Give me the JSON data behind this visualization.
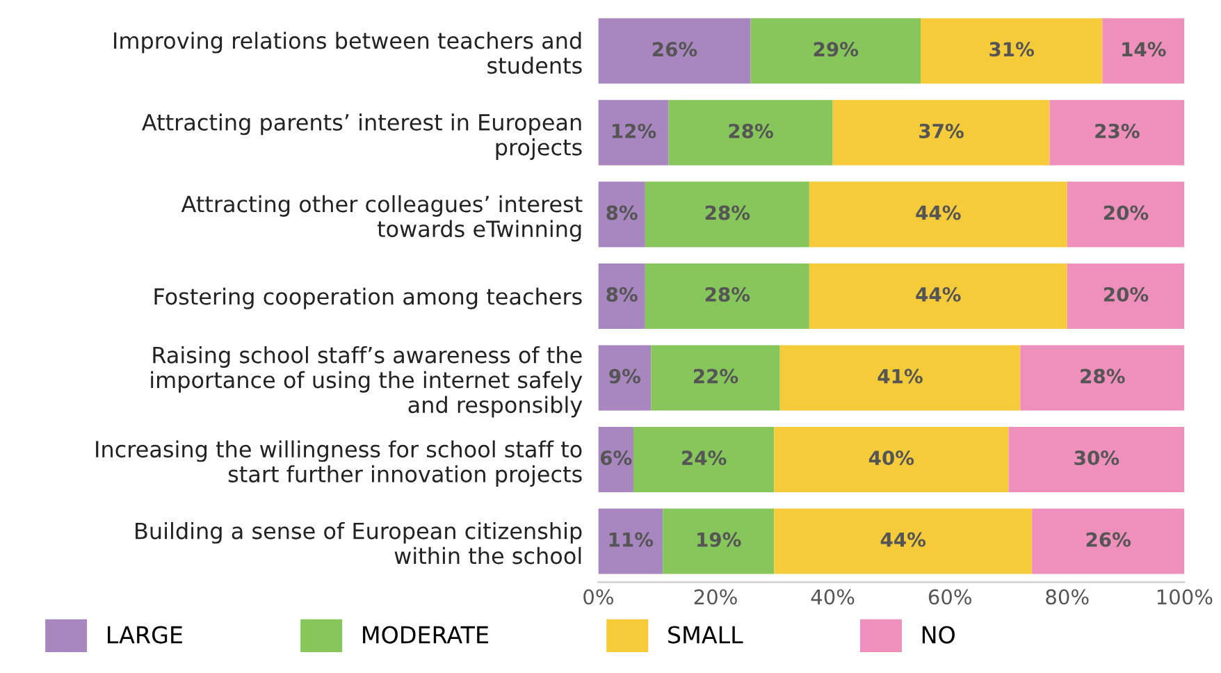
{
  "chart_data": {
    "type": "bar",
    "orientation": "horizontal",
    "stacked": true,
    "categories": [
      "Improving relations between teachers and\nstudents",
      "Attracting parents’ interest in European\nprojects",
      "Attracting other colleagues’ interest\ntowards eTwinning",
      "Fostering cooperation among teachers",
      "Raising school staff’s awareness of the\nimportance of using the internet safely\nand responsibly",
      "Increasing the willingness for school staff to\nstart further innovation projects",
      "Building a sense of European citizenship\nwithin the school"
    ],
    "series": [
      {
        "name": "LARGE",
        "color": "#a886bf",
        "values": [
          26,
          12,
          8,
          8,
          9,
          6,
          11
        ],
        "value_labels": [
          "26%",
          "12%",
          "8%",
          "8%",
          "9%",
          "6%",
          "11%"
        ]
      },
      {
        "name": "MODERATE",
        "color": "#86c65a",
        "values": [
          29,
          28,
          28,
          28,
          22,
          24,
          19
        ],
        "value_labels": [
          "29%",
          "28%",
          "28%",
          "28%",
          "22%",
          "24%",
          "19%"
        ]
      },
      {
        "name": "SMALL",
        "color": "#f5cb3a",
        "values": [
          31,
          37,
          44,
          44,
          41,
          40,
          44
        ],
        "value_labels": [
          "31%",
          "37%",
          "44%",
          "44%",
          "41%",
          "40%",
          "44%"
        ]
      },
      {
        "name": "NO",
        "color": "#ee90bb",
        "values": [
          14,
          23,
          20,
          20,
          28,
          30,
          26
        ],
        "value_labels": [
          "14%",
          "23%",
          "20%",
          "20%",
          "28%",
          "30%",
          "26%"
        ]
      }
    ],
    "xlim": [
      0,
      100
    ],
    "xticks": [
      {
        "value": 0,
        "label": "0%"
      },
      {
        "value": 20,
        "label": "20%"
      },
      {
        "value": 40,
        "label": "40%"
      },
      {
        "value": 60,
        "label": "60%"
      },
      {
        "value": 80,
        "label": "80%"
      },
      {
        "value": 100,
        "label": "100%"
      }
    ],
    "grid": false,
    "legend": "bottom"
  }
}
